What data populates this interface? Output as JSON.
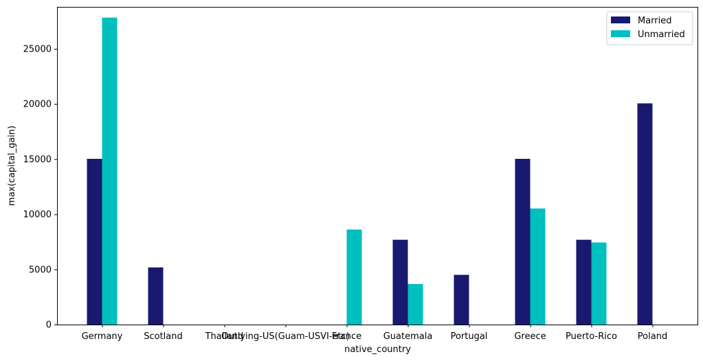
{
  "chart_data": {
    "type": "bar",
    "title": "",
    "xlabel": "native_country",
    "ylabel": "max(capital_gain)",
    "categories": [
      " Germany",
      " Scotland",
      " Thailand",
      " Outlying-US(Guam-USVI-etc)",
      " France",
      " Guatemala",
      " Portugal",
      " Greece",
      " Puerto-Rico",
      " Poland"
    ],
    "series": [
      {
        "name": "Married",
        "color": "#191970",
        "values": [
          15024,
          5178,
          0,
          0,
          0,
          7688,
          4508,
          15024,
          7688,
          20051
        ]
      },
      {
        "name": "Unmarried",
        "color": "#00BFBF",
        "values": [
          27828,
          0,
          0,
          0,
          8614,
          3674,
          0,
          10520,
          7443,
          0
        ]
      }
    ],
    "ylim": [
      0,
      28800
    ],
    "yticks": [
      0,
      5000,
      10000,
      15000,
      20000,
      25000
    ],
    "grid": false,
    "legend_position": "top-right"
  }
}
